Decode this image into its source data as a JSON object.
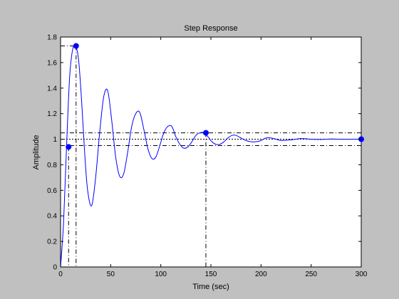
{
  "figure": {
    "background": "#c0c0c0"
  },
  "chart_data": {
    "type": "line",
    "title": "Step Response",
    "xlabel": "Time (sec)",
    "ylabel": "Amplitude",
    "xlim": [
      0,
      300
    ],
    "ylim": [
      0,
      1.8
    ],
    "xticks": [
      "0",
      "50",
      "100",
      "150",
      "200",
      "250",
      "300"
    ],
    "yticks": [
      "0",
      "0.2",
      "0.4",
      "0.6",
      "0.8",
      "1",
      "1.2",
      "1.4",
      "1.6",
      "1.8"
    ],
    "grid": false,
    "colors": {
      "line": "#0000ff",
      "markers": "#0000ff",
      "reference_lines": "#000000",
      "axes_background": "#ffffff"
    },
    "response": {
      "x": [
        0,
        3,
        6,
        9,
        12,
        15,
        18,
        21,
        24,
        27,
        31,
        35,
        39,
        43,
        47,
        51,
        55,
        59,
        63,
        67,
        71,
        75,
        79,
        83,
        87,
        91,
        95,
        99,
        103,
        107,
        111,
        115,
        119,
        123,
        127,
        131,
        135,
        139,
        143,
        147,
        151,
        155,
        159,
        163,
        167,
        171,
        175,
        180,
        185,
        190,
        195,
        200,
        205,
        210,
        215,
        220,
        230,
        240,
        250,
        260,
        270,
        280,
        290,
        300
      ],
      "y": [
        0,
        0.35,
        0.95,
        1.48,
        1.7,
        1.73,
        1.62,
        1.3,
        0.9,
        0.6,
        0.48,
        0.7,
        1.05,
        1.33,
        1.38,
        1.15,
        0.86,
        0.71,
        0.73,
        0.9,
        1.1,
        1.2,
        1.21,
        1.08,
        0.93,
        0.85,
        0.86,
        0.95,
        1.05,
        1.1,
        1.1,
        1.02,
        0.96,
        0.93,
        0.94,
        0.98,
        1.03,
        1.05,
        1.05,
        1.02,
        0.98,
        0.96,
        0.96,
        0.98,
        1.01,
        1.03,
        1.03,
        1.01,
        0.99,
        0.98,
        0.98,
        0.99,
        1.01,
        1.01,
        1.0,
        0.99,
        0.995,
        1.005,
        1.0,
        0.998,
        1.002,
        1.0,
        1.0,
        1.0
      ]
    },
    "characteristic_points": [
      {
        "name": "rise-time-point",
        "x": 8,
        "y": 0.94
      },
      {
        "name": "peak-point",
        "x": 15.5,
        "y": 1.73
      },
      {
        "name": "settling-time-point",
        "x": 145,
        "y": 1.05
      },
      {
        "name": "steady-state-point",
        "x": 300,
        "y": 1.0
      }
    ],
    "reference_lines": {
      "settling_band": [
        0.95,
        1.05
      ],
      "steady_state": 1.0,
      "peak": 1.73,
      "peak_time": 15.5,
      "rise_time": 8,
      "settling_time": 145
    }
  }
}
